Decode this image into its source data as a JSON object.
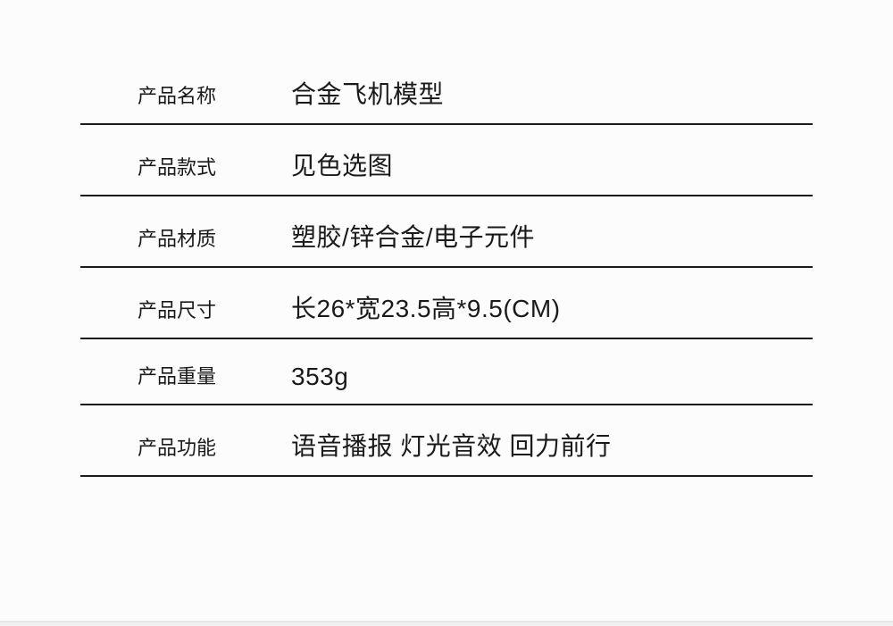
{
  "specs": {
    "rows": [
      {
        "label": "产品名称",
        "value": "合金飞机模型"
      },
      {
        "label": "产品款式",
        "value": "见色选图"
      },
      {
        "label": "产品材质",
        "value": "塑胶/锌合金/电子元件"
      },
      {
        "label": "产品尺寸",
        "value": "长26*宽23.5高*9.5(CM)"
      },
      {
        "label": "产品重量",
        "value": "353g"
      },
      {
        "label": "产品功能",
        "value": "语音播报  灯光音效  回力前行"
      }
    ]
  },
  "styling": {
    "background_color": "#fcfcfc",
    "text_color": "#1a1a1a",
    "border_color": "#1a1a1a",
    "label_fontsize": 22,
    "value_fontsize": 28,
    "border_width": 2
  }
}
